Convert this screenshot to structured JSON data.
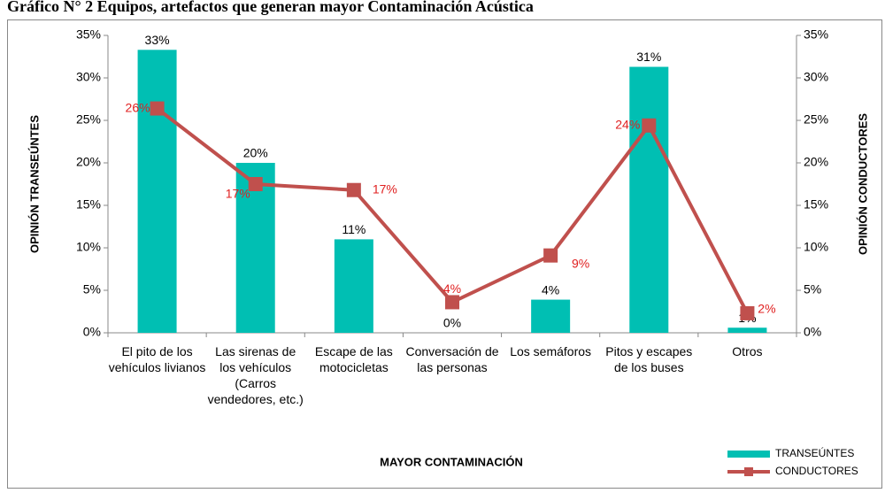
{
  "chart_data": {
    "type": "bar",
    "title": "Gráfico N° 2 Equipos, artefactos que generan mayor Contaminación Acústica",
    "xlabel": "MAYOR CONTAMINACIÓN",
    "ylabel": "OPINIÓN TRANSEÚNTES",
    "y2label": "OPINIÓN CONDUCTORES",
    "categories": [
      "El pito de los vehículos livianos",
      "Las sirenas de los vehículos (Carros vendedores, etc.)",
      "Escape de las motocicletas",
      "Conversación de las personas",
      "Los semáforos",
      "Pitos y escapes de los buses",
      "Otros"
    ],
    "series": [
      {
        "name": "TRANSEÚNTES",
        "type": "bar",
        "color": "#00bfb3",
        "values": [
          33.3,
          20,
          11,
          0,
          3.9,
          31.3,
          0.6
        ],
        "value_labels": [
          "33%",
          "20%",
          "11%",
          "0%",
          "4%",
          "31%",
          "1%"
        ]
      },
      {
        "name": "CONDUCTORES",
        "type": "line",
        "axis": "y2",
        "color": "#c0504d",
        "values": [
          26.4,
          17.5,
          16.8,
          3.6,
          9.1,
          24.4,
          2.3
        ],
        "value_labels": [
          "26%",
          "17%",
          "17%",
          "4%",
          "9%",
          "24%",
          "2%"
        ]
      }
    ],
    "ylim": [
      0,
      35
    ],
    "yticks": [
      {
        "value": 0,
        "label": "0%"
      },
      {
        "value": 5,
        "label": "5%"
      },
      {
        "value": 10,
        "label": "10%"
      },
      {
        "value": 15,
        "label": "15%"
      },
      {
        "value": 20,
        "label": "20%"
      },
      {
        "value": 25,
        "label": "25%"
      },
      {
        "value": 30,
        "label": "30%"
      },
      {
        "value": 35,
        "label": "35%"
      }
    ],
    "y2lim": [
      0,
      35
    ],
    "y2ticks": [
      {
        "value": 0,
        "label": "0%"
      },
      {
        "value": 5,
        "label": "5%"
      },
      {
        "value": 10,
        "label": "10%"
      },
      {
        "value": 15,
        "label": "15%"
      },
      {
        "value": 20,
        "label": "20%"
      },
      {
        "value": 25,
        "label": "25%"
      },
      {
        "value": 30,
        "label": "30%"
      },
      {
        "value": 35,
        "label": "35%"
      }
    ],
    "legend": "bottom-right"
  }
}
